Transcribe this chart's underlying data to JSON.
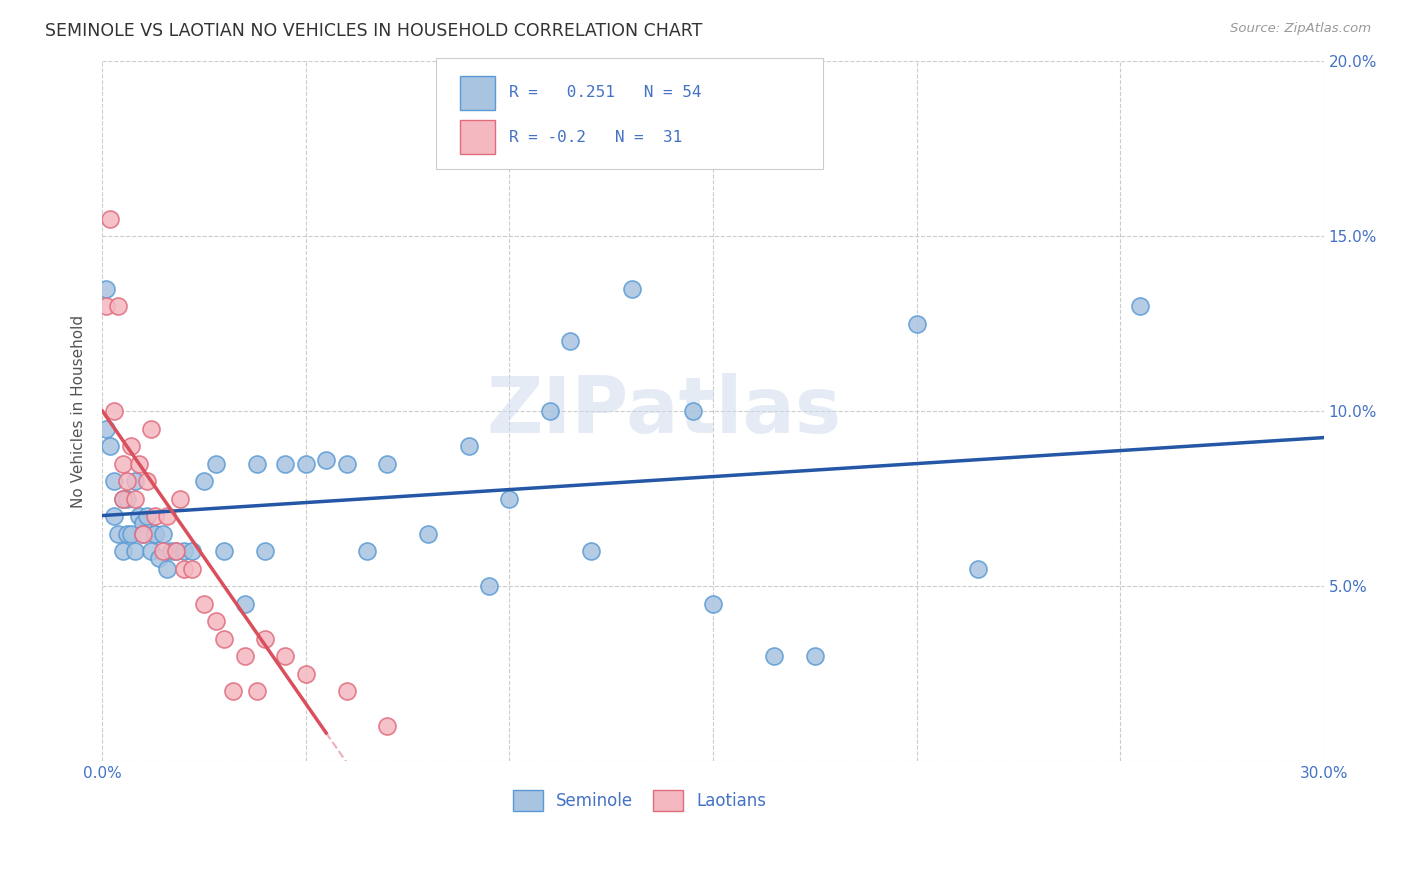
{
  "title": "SEMINOLE VS LAOTIAN NO VEHICLES IN HOUSEHOLD CORRELATION CHART",
  "source": "Source: ZipAtlas.com",
  "ylabel": "No Vehicles in Household",
  "xlim": [
    0.0,
    0.3
  ],
  "ylim": [
    0.0,
    0.2
  ],
  "xticks": [
    0.0,
    0.05,
    0.1,
    0.15,
    0.2,
    0.25,
    0.3
  ],
  "yticks": [
    0.0,
    0.05,
    0.1,
    0.15,
    0.2
  ],
  "xticklabels": [
    "0.0%",
    "",
    "",
    "",
    "",
    "",
    "30.0%"
  ],
  "right_yticklabels": [
    "",
    "5.0%",
    "10.0%",
    "15.0%",
    "20.0%"
  ],
  "seminole_color": "#a8c4e0",
  "laotian_color": "#f4b8c1",
  "seminole_edge": "#5b9bd5",
  "laotian_edge": "#e06b7d",
  "trend_seminole_color": "#2458a6",
  "trend_laotian_color": "#d94f5c",
  "R_seminole": 0.251,
  "N_seminole": 54,
  "R_laotian": -0.2,
  "N_laotian": 31,
  "watermark": "ZIPatlas",
  "tick_color": "#4472c4",
  "seminole_x": [
    0.001,
    0.001,
    0.002,
    0.003,
    0.003,
    0.004,
    0.005,
    0.005,
    0.006,
    0.006,
    0.007,
    0.008,
    0.008,
    0.009,
    0.01,
    0.01,
    0.011,
    0.012,
    0.013,
    0.013,
    0.014,
    0.015,
    0.016,
    0.017,
    0.018,
    0.02,
    0.022,
    0.025,
    0.028,
    0.03,
    0.035,
    0.038,
    0.04,
    0.045,
    0.05,
    0.055,
    0.06,
    0.065,
    0.07,
    0.08,
    0.09,
    0.095,
    0.1,
    0.11,
    0.115,
    0.12,
    0.13,
    0.145,
    0.15,
    0.165,
    0.175,
    0.2,
    0.215,
    0.255
  ],
  "seminole_y": [
    0.135,
    0.095,
    0.09,
    0.07,
    0.08,
    0.065,
    0.075,
    0.06,
    0.075,
    0.065,
    0.065,
    0.08,
    0.06,
    0.07,
    0.068,
    0.065,
    0.07,
    0.06,
    0.065,
    0.065,
    0.058,
    0.065,
    0.055,
    0.06,
    0.06,
    0.06,
    0.06,
    0.08,
    0.085,
    0.06,
    0.045,
    0.085,
    0.06,
    0.085,
    0.085,
    0.086,
    0.085,
    0.06,
    0.085,
    0.065,
    0.09,
    0.05,
    0.075,
    0.1,
    0.12,
    0.06,
    0.135,
    0.1,
    0.045,
    0.03,
    0.03,
    0.125,
    0.055,
    0.13
  ],
  "laotian_x": [
    0.001,
    0.002,
    0.003,
    0.004,
    0.005,
    0.005,
    0.006,
    0.007,
    0.008,
    0.009,
    0.01,
    0.011,
    0.012,
    0.013,
    0.015,
    0.016,
    0.018,
    0.019,
    0.02,
    0.022,
    0.025,
    0.028,
    0.03,
    0.032,
    0.035,
    0.038,
    0.04,
    0.045,
    0.05,
    0.06,
    0.07
  ],
  "laotian_y": [
    0.13,
    0.155,
    0.1,
    0.13,
    0.085,
    0.075,
    0.08,
    0.09,
    0.075,
    0.085,
    0.065,
    0.08,
    0.095,
    0.07,
    0.06,
    0.07,
    0.06,
    0.075,
    0.055,
    0.055,
    0.045,
    0.04,
    0.035,
    0.02,
    0.03,
    0.02,
    0.035,
    0.03,
    0.025,
    0.02,
    0.01
  ],
  "trend_s_x0": 0.0,
  "trend_s_x1": 0.3,
  "trend_l_solid_x0": 0.0,
  "trend_l_solid_x1": 0.055,
  "trend_l_dash_x1": 0.155
}
